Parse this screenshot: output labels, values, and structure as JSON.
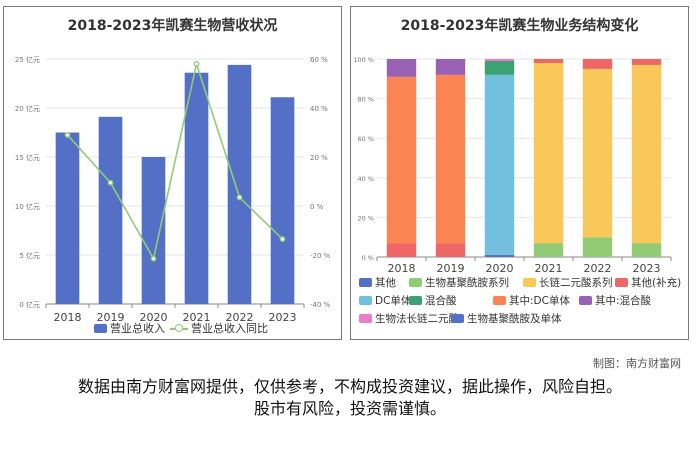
{
  "charts": [
    {
      "title": "2018-2023年凯赛生物营收状况",
      "chart_data": {
        "type": "bar",
        "title": "2018-2023年凯赛生物营收状况",
        "categories": [
          "2018",
          "2019",
          "2020",
          "2021",
          "2022",
          "2023"
        ],
        "y_left": {
          "min": 0,
          "max": 25,
          "ticks": [
            "0 亿元",
            "5 亿元",
            "10 亿元",
            "15 亿元",
            "20 亿元",
            "25 亿元"
          ]
        },
        "y_right": {
          "min": -40,
          "max": 60,
          "ticks": [
            "-40 %",
            "-20 %",
            "0 %",
            "20 %",
            "40 %",
            "60 %"
          ]
        },
        "series": [
          {
            "name": "营业总收入",
            "type": "bar",
            "axis": "left",
            "color": "#5470c6",
            "values": [
              17.5,
              19.1,
              15.0,
              23.6,
              24.4,
              21.1
            ]
          },
          {
            "name": "营业总收入同比",
            "type": "line",
            "axis": "right",
            "color": "#91cc75",
            "values": [
              29,
              9.5,
              -21.5,
              58,
              3.5,
              -13.5
            ]
          }
        ],
        "legend_position": "bottom"
      }
    },
    {
      "title": "2018-2023年凯赛生物业务结构变化",
      "chart_data": {
        "type": "bar",
        "stacked": true,
        "title": "2018-2023年凯赛生物业务结构变化",
        "categories": [
          "2018",
          "2019",
          "2020",
          "2021",
          "2022",
          "2023"
        ],
        "y": {
          "min": 0,
          "max": 100,
          "ticks": [
            "0 %",
            "20 %",
            "40 %",
            "60 %",
            "80 %",
            "100 %"
          ]
        },
        "series": [
          {
            "name": "其他",
            "color": "#5470c6",
            "values": [
              0,
              0,
              1,
              0,
              0,
              0
            ]
          },
          {
            "name": "生物基聚酰胺系列",
            "color": "#91cc75",
            "values": [
              0,
              0,
              0,
              7,
              10,
              7
            ]
          },
          {
            "name": "长链二元酸系列",
            "color": "#fac858",
            "values": [
              0,
              0,
              0,
              91,
              85,
              90
            ]
          },
          {
            "name": "其他(补充)",
            "color": "#ee6666",
            "values": [
              7,
              7,
              0,
              2,
              5,
              3
            ]
          },
          {
            "name": "DC单体",
            "color": "#73c0de",
            "values": [
              0,
              0,
              91,
              0,
              0,
              0
            ]
          },
          {
            "name": "混合酸",
            "color": "#3ba272",
            "values": [
              0,
              0,
              7,
              0,
              0,
              0
            ]
          },
          {
            "name": "其中:DC单体",
            "color": "#fc8452",
            "values": [
              84,
              85,
              0,
              0,
              0,
              0
            ]
          },
          {
            "name": "其中:混合酸",
            "color": "#9a60b4",
            "values": [
              9,
              8,
              0,
              0,
              0,
              0
            ]
          },
          {
            "name": "生物法长链二元酸",
            "color": "#ea7ccc",
            "values": [
              0,
              0,
              1,
              0,
              0,
              0
            ]
          },
          {
            "name": "生物基聚酰胺及单体",
            "color": "#5470c6",
            "values": [
              0,
              0,
              0,
              0,
              0,
              0
            ]
          }
        ],
        "legend_position": "bottom"
      }
    }
  ],
  "footer": {
    "credit": "制图：南方财富网",
    "disclaimer_line1": "数据由南方财富网提供，仅供参考，不构成投资建议，据此操作，风险自担。",
    "disclaimer_line2": "股市有风险，投资需谨慎。"
  }
}
